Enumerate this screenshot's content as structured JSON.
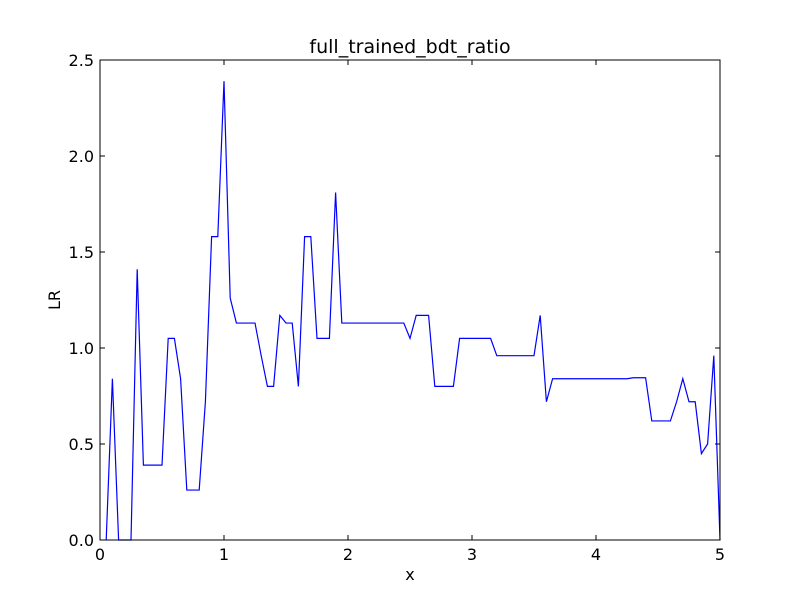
{
  "chart_data": {
    "type": "line",
    "title": "full_trained_bdt_ratio",
    "xlabel": "x",
    "ylabel": "LR",
    "xlim": [
      0,
      5
    ],
    "ylim": [
      0,
      2.5
    ],
    "grid": false,
    "xticks": [
      0,
      1,
      2,
      3,
      4,
      5
    ],
    "xtick_labels": [
      "0",
      "1",
      "2",
      "3",
      "4",
      "5"
    ],
    "yticks": [
      0.0,
      0.5,
      1.0,
      1.5,
      2.0,
      2.5
    ],
    "ytick_labels": [
      "0.0",
      "0.5",
      "1.0",
      "1.5",
      "2.0",
      "2.5"
    ],
    "series": [
      {
        "color": "#0000ff",
        "x": [
          0.05,
          0.1,
          0.15,
          0.2,
          0.25,
          0.3,
          0.35,
          0.4,
          0.45,
          0.5,
          0.55,
          0.6,
          0.65,
          0.7,
          0.75,
          0.8,
          0.85,
          0.9,
          0.95,
          1.0,
          1.05,
          1.1,
          1.15,
          1.2,
          1.25,
          1.3,
          1.35,
          1.4,
          1.45,
          1.5,
          1.55,
          1.6,
          1.65,
          1.7,
          1.75,
          1.8,
          1.85,
          1.9,
          1.95,
          2.0,
          2.45,
          2.5,
          2.55,
          2.6,
          2.65,
          2.7,
          2.75,
          2.8,
          2.85,
          2.9,
          3.15,
          3.2,
          3.45,
          3.5,
          3.55,
          3.6,
          3.65,
          4.25,
          4.3,
          4.35,
          4.4,
          4.45,
          4.5,
          4.55,
          4.6,
          4.65,
          4.7,
          4.75,
          4.8,
          4.85,
          4.9,
          4.95,
          5.0
        ],
        "y": [
          0.0,
          0.84,
          0.0,
          0.0,
          0.0,
          1.41,
          0.39,
          0.39,
          0.39,
          0.39,
          1.05,
          1.05,
          0.84,
          0.26,
          0.26,
          0.26,
          0.72,
          1.58,
          1.58,
          2.39,
          1.26,
          1.13,
          1.13,
          1.13,
          1.13,
          0.96,
          0.8,
          0.8,
          1.17,
          1.13,
          1.13,
          0.8,
          1.58,
          1.58,
          1.05,
          1.05,
          1.05,
          1.81,
          1.13,
          1.13,
          1.13,
          1.05,
          1.17,
          1.17,
          1.17,
          0.8,
          0.8,
          0.8,
          0.8,
          1.05,
          1.05,
          0.96,
          0.96,
          0.96,
          1.17,
          0.72,
          0.84,
          0.84,
          0.845,
          0.845,
          0.845,
          0.62,
          0.62,
          0.62,
          0.62,
          0.72,
          0.84,
          0.72,
          0.72,
          0.45,
          0.5,
          0.96,
          0.0
        ]
      }
    ]
  }
}
